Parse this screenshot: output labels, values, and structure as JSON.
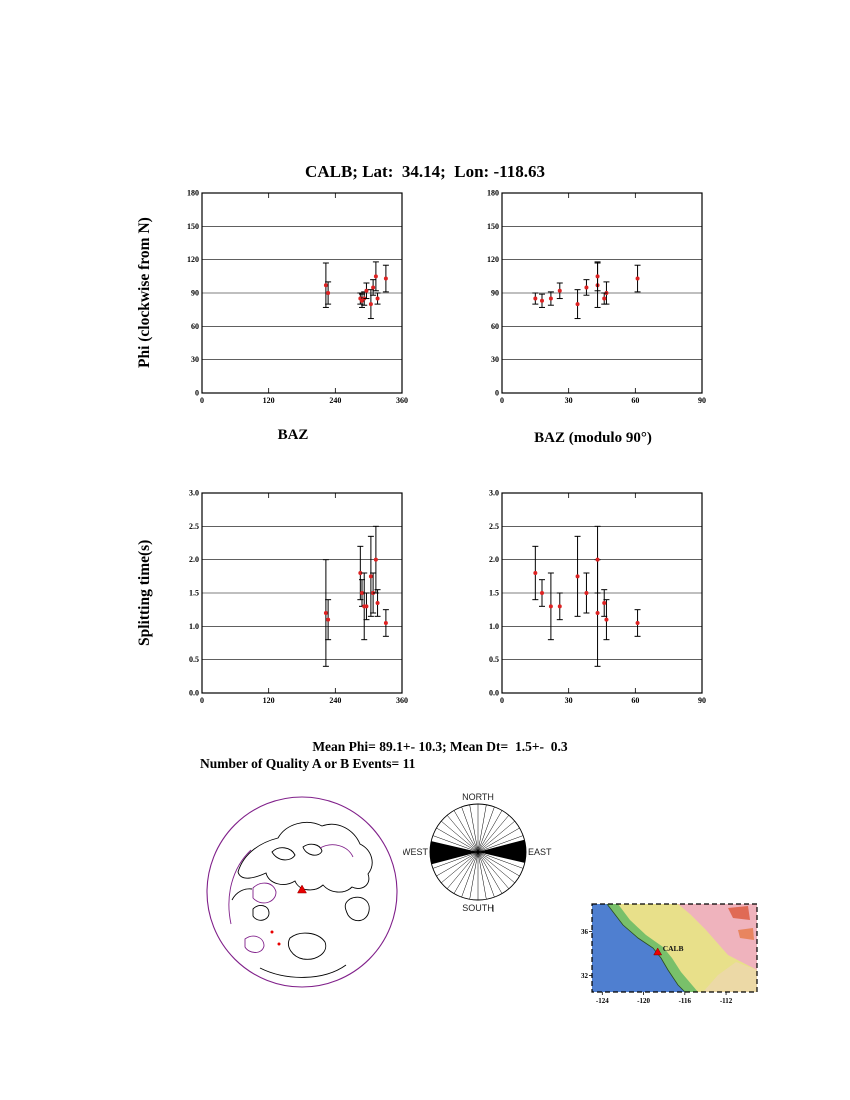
{
  "title": "CALB; Lat:  34.14;  Lon: -118.63",
  "axis_labels": {
    "phi": "Phi (clockwise from N)",
    "dt": "Splitting time(s)",
    "baz": "BAZ",
    "baz_mod": "BAZ (modulo 90°)"
  },
  "summary": {
    "mean_line": "Mean Phi= 89.1+- 10.3; Mean Dt=  1.5+-  0.3",
    "count_line": "Number of Quality A or B Events= 11",
    "mean_phi": 89.1,
    "mean_phi_err": 10.3,
    "mean_dt": 1.5,
    "mean_dt_err": 0.3,
    "n_events": 11
  },
  "chart_data": [
    {
      "id": "phi_vs_baz",
      "type": "scatter",
      "title": "",
      "xlabel": "BAZ",
      "ylabel": "Phi (clockwise from N)",
      "xlim": [
        0,
        360
      ],
      "ylim": [
        0,
        180
      ],
      "xticks": [
        0,
        120,
        240,
        360
      ],
      "yticks": [
        0,
        30,
        60,
        90,
        120,
        150,
        180
      ],
      "ydecimals": 0,
      "grid": "horizontal",
      "x": [
        223,
        227,
        285,
        288,
        292,
        296,
        304,
        308,
        313,
        316,
        331
      ],
      "y": [
        97,
        90,
        85,
        83,
        85,
        92,
        80,
        95,
        105,
        85,
        103
      ],
      "yerr": [
        20,
        10,
        5,
        6,
        6,
        7,
        13,
        7,
        13,
        5,
        12
      ]
    },
    {
      "id": "phi_vs_baz_mod90",
      "type": "scatter",
      "title": "",
      "xlabel": "BAZ (modulo 90°)",
      "ylabel": "Phi (clockwise from N)",
      "xlim": [
        0,
        90
      ],
      "ylim": [
        0,
        180
      ],
      "xticks": [
        0,
        30,
        60,
        90
      ],
      "yticks": [
        0,
        30,
        60,
        90,
        120,
        150,
        180
      ],
      "ydecimals": 0,
      "grid": "horizontal",
      "x": [
        43,
        47,
        15,
        18,
        22,
        26,
        34,
        38,
        43,
        46,
        61
      ],
      "y": [
        97,
        90,
        85,
        83,
        85,
        92,
        80,
        95,
        105,
        85,
        103
      ],
      "yerr": [
        20,
        10,
        5,
        6,
        6,
        7,
        13,
        7,
        13,
        5,
        12
      ]
    },
    {
      "id": "dt_vs_baz",
      "type": "scatter",
      "title": "",
      "xlabel": "BAZ",
      "ylabel": "Splitting time(s)",
      "xlim": [
        0,
        360
      ],
      "ylim": [
        0,
        3
      ],
      "xticks": [
        0,
        120,
        240,
        360
      ],
      "yticks": [
        0,
        0.5,
        1,
        1.5,
        2,
        2.5,
        3
      ],
      "ydecimals": 1,
      "grid": "horizontal",
      "x": [
        223,
        227,
        285,
        288,
        292,
        296,
        304,
        308,
        313,
        316,
        331
      ],
      "y": [
        1.2,
        1.1,
        1.8,
        1.5,
        1.3,
        1.3,
        1.75,
        1.5,
        2.0,
        1.35,
        1.05
      ],
      "yerr": [
        0.8,
        0.3,
        0.4,
        0.2,
        0.5,
        0.2,
        0.6,
        0.3,
        0.5,
        0.2,
        0.2
      ]
    },
    {
      "id": "dt_vs_baz_mod90",
      "type": "scatter",
      "title": "",
      "xlabel": "BAZ (modulo 90°)",
      "ylabel": "Splitting time(s)",
      "xlim": [
        0,
        90
      ],
      "ylim": [
        0,
        3
      ],
      "xticks": [
        0,
        30,
        60,
        90
      ],
      "yticks": [
        0,
        0.5,
        1,
        1.5,
        2,
        2.5,
        3
      ],
      "ydecimals": 1,
      "grid": "horizontal",
      "x": [
        43,
        47,
        15,
        18,
        22,
        26,
        34,
        38,
        43,
        46,
        61
      ],
      "y": [
        1.2,
        1.1,
        1.8,
        1.5,
        1.3,
        1.3,
        1.75,
        1.5,
        2.0,
        1.35,
        1.05
      ],
      "yerr": [
        0.8,
        0.3,
        0.4,
        0.2,
        0.5,
        0.2,
        0.6,
        0.3,
        0.5,
        0.2,
        0.2
      ]
    }
  ],
  "rose": {
    "north": "NORTH",
    "south": "SOUTH",
    "east": "EAST",
    "west": "WEST",
    "mean_phi_deg": 89.1,
    "wedge_half_width_deg": 14,
    "spoke_step_deg": 10
  },
  "station_map": {
    "station": "CALB",
    "station_lon": -118.63,
    "station_lat": 34.14,
    "lon_range": [
      -125,
      -109
    ],
    "lat_range": [
      30.5,
      38.5
    ],
    "xticks": [
      -124,
      -120,
      -116,
      -112
    ],
    "yticks": [
      36,
      32
    ]
  },
  "colors": {
    "point": "#dd2222",
    "error_bar": "#000000",
    "station_triangle": "#ee0000",
    "coastline": "#000000",
    "plate_boundary": "#80208a",
    "ocean": "#4f7fd0",
    "coastal_land": "#79c06a",
    "inland": "#e8e08a",
    "desert": "#efb3bd",
    "highland": "#e06a55"
  }
}
